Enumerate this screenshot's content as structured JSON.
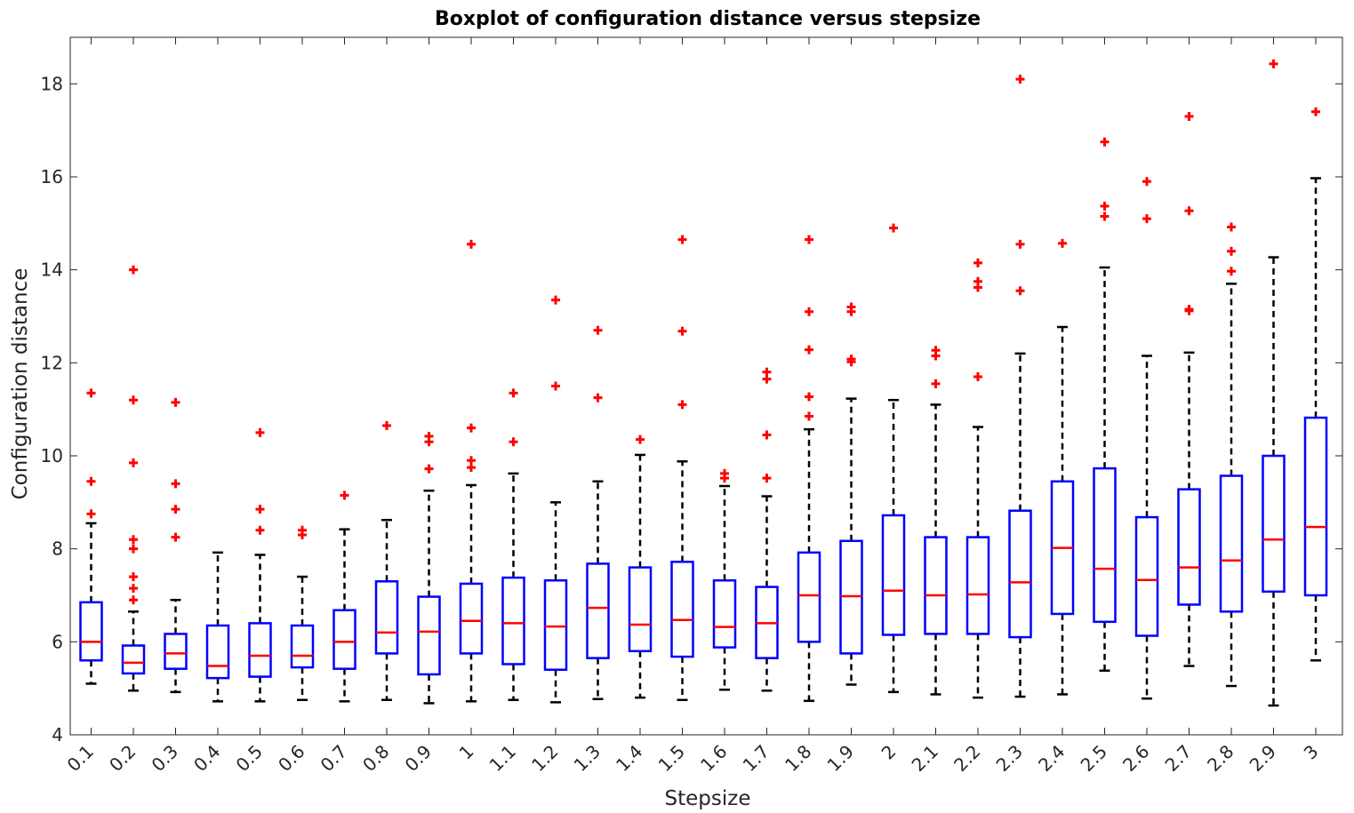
{
  "chart_data": {
    "type": "boxplot",
    "title": "Boxplot of configuration distance versus stepsize",
    "xlabel": "Stepsize",
    "ylabel": "Configuration distance",
    "ylim": [
      4,
      19
    ],
    "yticks": [
      4,
      6,
      8,
      10,
      12,
      14,
      16,
      18
    ],
    "grid": false,
    "colors": {
      "box": "#0000ff",
      "median": "#ff0000",
      "whisker": "#000000",
      "outlier": "#ff0000",
      "axis": "#262626"
    },
    "categories": [
      "0.1",
      "0.2",
      "0.3",
      "0.4",
      "0.5",
      "0.6",
      "0.7",
      "0.8",
      "0.9",
      "1",
      "1.1",
      "1.2",
      "1.3",
      "1.4",
      "1.5",
      "1.6",
      "1.7",
      "1.8",
      "1.9",
      "2",
      "2.1",
      "2.2",
      "2.3",
      "2.4",
      "2.5",
      "2.6",
      "2.7",
      "2.8",
      "2.9",
      "3"
    ],
    "boxes": [
      {
        "lower_whisker": 5.1,
        "q1": 5.6,
        "median": 6.0,
        "q3": 6.85,
        "upper_whisker": 8.55,
        "outliers": [
          8.75,
          9.45,
          11.35
        ]
      },
      {
        "lower_whisker": 4.95,
        "q1": 5.32,
        "median": 5.55,
        "q3": 5.92,
        "upper_whisker": 6.65,
        "outliers": [
          6.9,
          7.15,
          7.4,
          8.0,
          8.2,
          9.85,
          11.2,
          14.0
        ]
      },
      {
        "lower_whisker": 4.92,
        "q1": 5.42,
        "median": 5.75,
        "q3": 6.17,
        "upper_whisker": 6.9,
        "outliers": [
          8.25,
          8.85,
          9.4,
          11.15
        ]
      },
      {
        "lower_whisker": 4.72,
        "q1": 5.22,
        "median": 5.48,
        "q3": 6.35,
        "upper_whisker": 7.92,
        "outliers": []
      },
      {
        "lower_whisker": 4.72,
        "q1": 5.25,
        "median": 5.7,
        "q3": 6.4,
        "upper_whisker": 7.87,
        "outliers": [
          8.4,
          8.85,
          10.5
        ]
      },
      {
        "lower_whisker": 4.75,
        "q1": 5.45,
        "median": 5.7,
        "q3": 6.35,
        "upper_whisker": 7.4,
        "outliers": [
          8.3,
          8.4
        ]
      },
      {
        "lower_whisker": 4.72,
        "q1": 5.42,
        "median": 6.0,
        "q3": 6.68,
        "upper_whisker": 8.42,
        "outliers": [
          9.15
        ]
      },
      {
        "lower_whisker": 4.75,
        "q1": 5.75,
        "median": 6.2,
        "q3": 7.3,
        "upper_whisker": 8.62,
        "outliers": [
          10.65
        ]
      },
      {
        "lower_whisker": 4.68,
        "q1": 5.3,
        "median": 6.22,
        "q3": 6.97,
        "upper_whisker": 9.25,
        "outliers": [
          9.72,
          10.3,
          10.42
        ]
      },
      {
        "lower_whisker": 4.72,
        "q1": 5.75,
        "median": 6.45,
        "q3": 7.25,
        "upper_whisker": 9.37,
        "outliers": [
          9.75,
          9.9,
          10.6,
          14.55
        ]
      },
      {
        "lower_whisker": 4.75,
        "q1": 5.52,
        "median": 6.4,
        "q3": 7.38,
        "upper_whisker": 9.62,
        "outliers": [
          10.3,
          11.35
        ]
      },
      {
        "lower_whisker": 4.7,
        "q1": 5.4,
        "median": 6.33,
        "q3": 7.32,
        "upper_whisker": 9.0,
        "outliers": [
          11.5,
          13.35
        ]
      },
      {
        "lower_whisker": 4.77,
        "q1": 5.65,
        "median": 6.73,
        "q3": 7.68,
        "upper_whisker": 9.45,
        "outliers": [
          11.25,
          12.7
        ]
      },
      {
        "lower_whisker": 4.8,
        "q1": 5.8,
        "median": 6.37,
        "q3": 7.6,
        "upper_whisker": 10.02,
        "outliers": [
          10.35
        ]
      },
      {
        "lower_whisker": 4.75,
        "q1": 5.68,
        "median": 6.47,
        "q3": 7.72,
        "upper_whisker": 9.88,
        "outliers": [
          11.1,
          12.68,
          14.65
        ]
      },
      {
        "lower_whisker": 4.97,
        "q1": 5.88,
        "median": 6.32,
        "q3": 7.32,
        "upper_whisker": 9.35,
        "outliers": [
          9.52,
          9.62
        ]
      },
      {
        "lower_whisker": 4.95,
        "q1": 5.65,
        "median": 6.4,
        "q3": 7.18,
        "upper_whisker": 9.13,
        "outliers": [
          9.52,
          10.45,
          11.65,
          11.8
        ]
      },
      {
        "lower_whisker": 4.73,
        "q1": 6.0,
        "median": 7.0,
        "q3": 7.92,
        "upper_whisker": 10.57,
        "outliers": [
          10.85,
          11.27,
          12.28,
          13.1,
          14.65
        ]
      },
      {
        "lower_whisker": 5.08,
        "q1": 5.75,
        "median": 6.98,
        "q3": 8.17,
        "upper_whisker": 11.23,
        "outliers": [
          12.02,
          12.08,
          13.1,
          13.2
        ]
      },
      {
        "lower_whisker": 4.92,
        "q1": 6.15,
        "median": 7.1,
        "q3": 8.72,
        "upper_whisker": 11.2,
        "outliers": [
          14.9
        ]
      },
      {
        "lower_whisker": 4.87,
        "q1": 6.17,
        "median": 7.0,
        "q3": 8.25,
        "upper_whisker": 11.1,
        "outliers": [
          11.55,
          12.15,
          12.27
        ]
      },
      {
        "lower_whisker": 4.8,
        "q1": 6.17,
        "median": 7.02,
        "q3": 8.25,
        "upper_whisker": 10.62,
        "outliers": [
          11.7,
          13.62,
          13.75,
          14.15
        ]
      },
      {
        "lower_whisker": 4.82,
        "q1": 6.1,
        "median": 7.28,
        "q3": 8.82,
        "upper_whisker": 12.2,
        "outliers": [
          13.55,
          14.55,
          18.1
        ]
      },
      {
        "lower_whisker": 4.87,
        "q1": 6.6,
        "median": 8.02,
        "q3": 9.45,
        "upper_whisker": 12.77,
        "outliers": [
          14.57
        ]
      },
      {
        "lower_whisker": 5.38,
        "q1": 6.43,
        "median": 7.57,
        "q3": 9.73,
        "upper_whisker": 14.05,
        "outliers": [
          15.15,
          15.37,
          16.75
        ]
      },
      {
        "lower_whisker": 4.78,
        "q1": 6.13,
        "median": 7.33,
        "q3": 8.68,
        "upper_whisker": 12.15,
        "outliers": [
          15.1,
          15.9
        ]
      },
      {
        "lower_whisker": 5.48,
        "q1": 6.8,
        "median": 7.6,
        "q3": 9.28,
        "upper_whisker": 12.22,
        "outliers": [
          13.12,
          13.15,
          15.27,
          17.3
        ]
      },
      {
        "lower_whisker": 5.05,
        "q1": 6.65,
        "median": 7.75,
        "q3": 9.57,
        "upper_whisker": 13.7,
        "outliers": [
          13.97,
          14.4,
          14.92
        ]
      },
      {
        "lower_whisker": 4.63,
        "q1": 7.08,
        "median": 8.2,
        "q3": 10.0,
        "upper_whisker": 14.27,
        "outliers": [
          18.43
        ]
      },
      {
        "lower_whisker": 5.6,
        "q1": 7.0,
        "median": 8.47,
        "q3": 10.82,
        "upper_whisker": 15.97,
        "outliers": [
          17.4
        ]
      }
    ]
  }
}
